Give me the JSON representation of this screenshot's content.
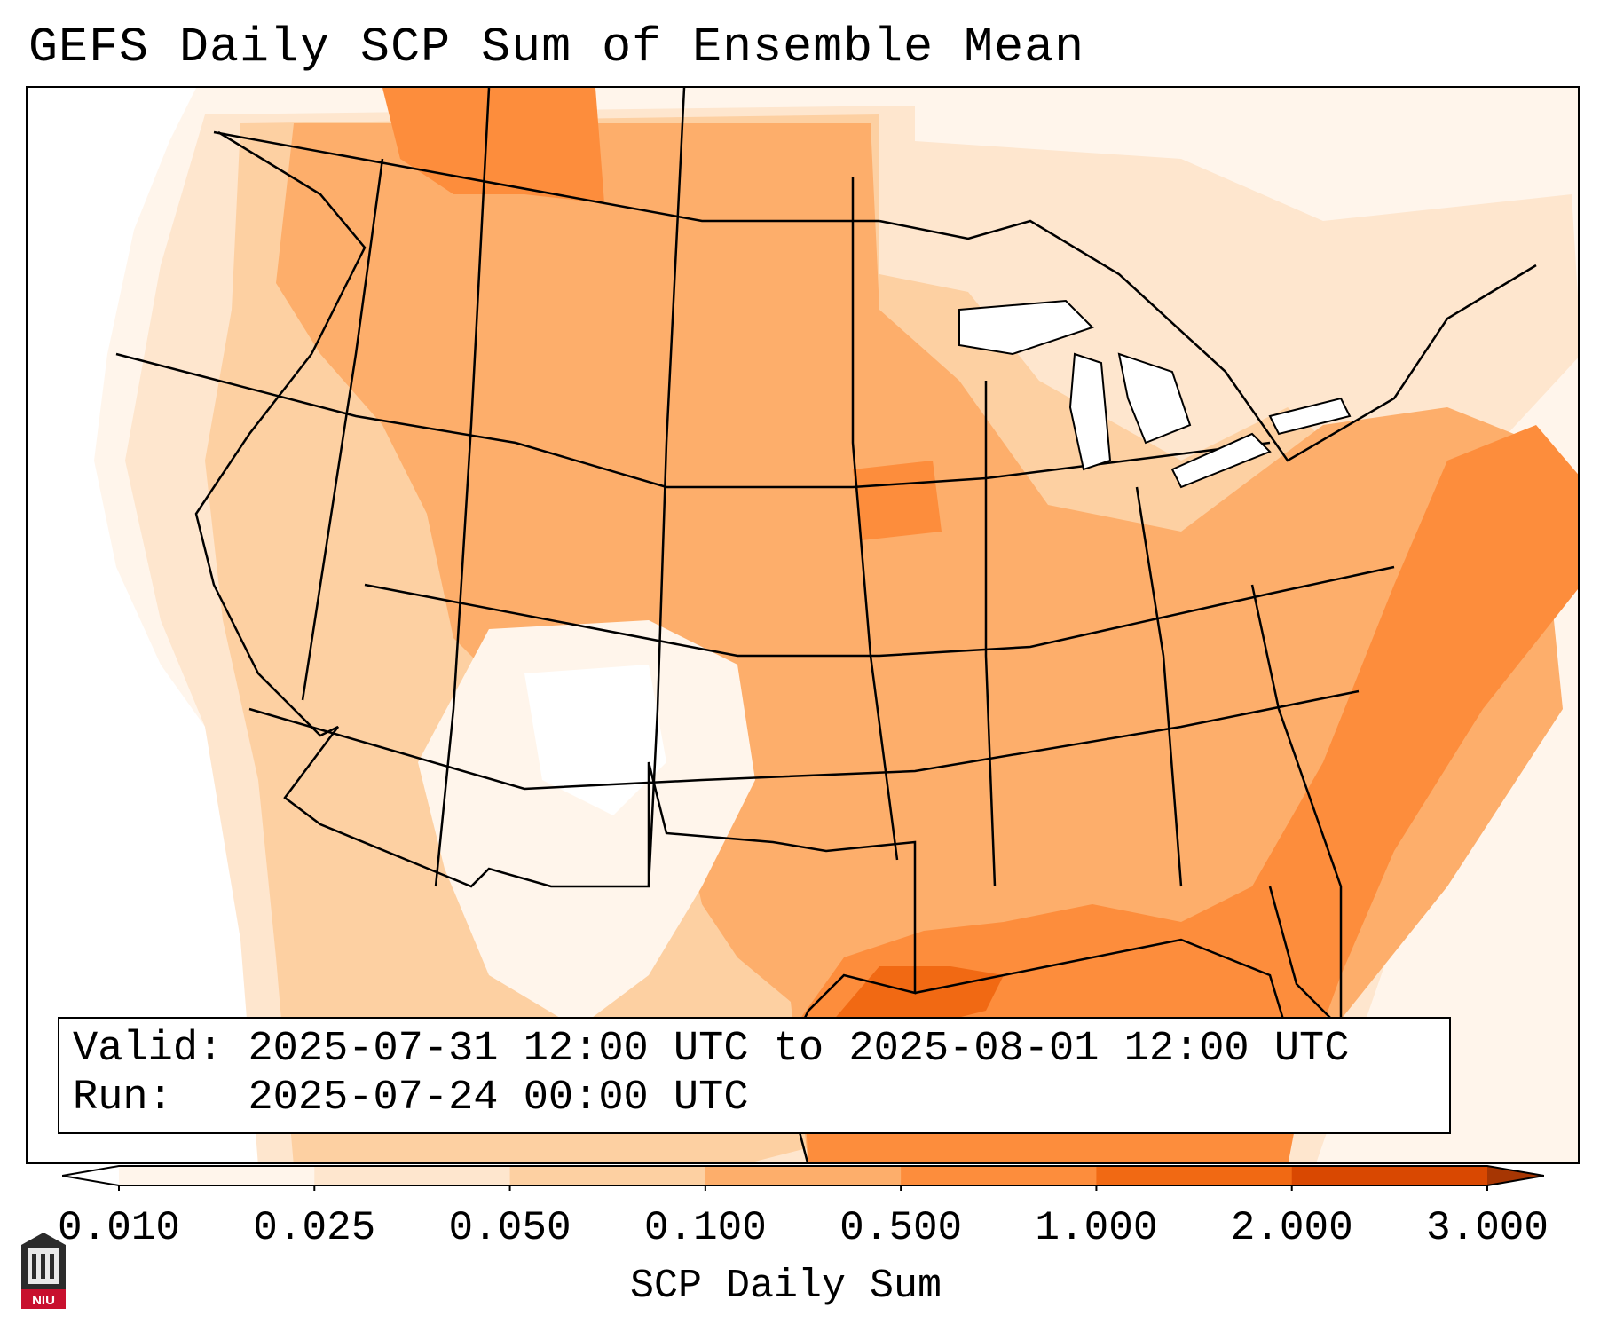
{
  "title": "GEFS Daily SCP Sum of Ensemble Mean",
  "info": {
    "valid_label": "Valid:",
    "valid_value": "2025-07-31 12:00 UTC to 2025-08-01 12:00 UTC",
    "run_label": "Run:",
    "run_value": "2025-07-24 00:00 UTC"
  },
  "colorbar": {
    "label": "SCP Daily Sum",
    "levels": [
      "0.010",
      "0.025",
      "0.050",
      "0.100",
      "0.500",
      "1.000",
      "2.000",
      "3.000"
    ],
    "colors": [
      "#fff5eb",
      "#fee6ce",
      "#fdd0a2",
      "#fdae6b",
      "#fd8d3c",
      "#f16913",
      "#d94801"
    ],
    "extend": "both"
  },
  "map": {
    "region": "Contiguous United States",
    "borders": "state and country boundaries, coastlines",
    "highest_values_region": "Gulf of Mexico coast and western Atlantic off the Carolinas"
  },
  "logo": {
    "text": "NIU"
  }
}
